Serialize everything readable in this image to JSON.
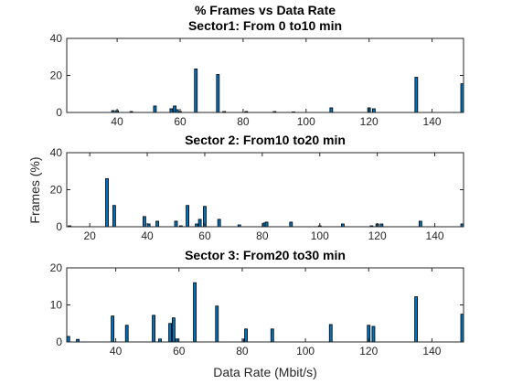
{
  "figure": {
    "title": "% Frames vs Data Rate",
    "xlabel": "Data Rate (Mbit/s)",
    "ylabel": "Frames (%)"
  },
  "colors": {
    "bar_fill": "#0072BD",
    "bar_edge": "#000000",
    "axis": "#262626"
  },
  "chart_data": [
    {
      "type": "bar",
      "title": "Sector1: From 0 to10 min",
      "xlabel": "",
      "ylabel": "",
      "xlim": [
        24,
        150
      ],
      "ylim": [
        0,
        40
      ],
      "xticks": [
        40,
        60,
        80,
        100,
        120,
        140
      ],
      "yticks": [
        0,
        20,
        40
      ],
      "x": [
        38.7,
        40,
        44.5,
        52,
        57.2,
        58.3,
        59,
        60,
        65,
        72,
        74,
        81,
        90,
        96,
        108,
        120,
        121.5,
        135,
        150
      ],
      "values": [
        1.0,
        1.0,
        0.5,
        3.5,
        2.0,
        3.5,
        1.5,
        0.5,
        23.5,
        20.5,
        0.5,
        0.5,
        0.5,
        0.3,
        2.5,
        2.5,
        2.0,
        19.0,
        15.5
      ]
    },
    {
      "type": "bar",
      "title": "Sector 2: From10 to20 min",
      "xlabel": "",
      "ylabel": "Frames (%)",
      "xlim": [
        12,
        150
      ],
      "ylim": [
        0,
        40
      ],
      "xticks": [
        20,
        40,
        60,
        80,
        100,
        120,
        140
      ],
      "yticks": [
        0,
        20,
        40
      ],
      "x": [
        13,
        26,
        28.5,
        39,
        40.5,
        43.5,
        50,
        51.7,
        54,
        57.2,
        58.3,
        60,
        65,
        72,
        80.8,
        81.5,
        90,
        100,
        108,
        118,
        120,
        121.5,
        135,
        150
      ],
      "values": [
        0.5,
        26.0,
        11.5,
        5.5,
        1.5,
        3.0,
        3.0,
        0.5,
        11.5,
        1.5,
        4.0,
        11.0,
        4.0,
        1.0,
        2.0,
        2.5,
        2.5,
        0.5,
        1.5,
        0.5,
        1.5,
        1.5,
        3.0,
        1.5
      ]
    },
    {
      "type": "bar",
      "title": "Sector 3: From20 to30 min",
      "xlabel": "Data Rate (Mbit/s)",
      "ylabel": "",
      "xlim": [
        24.5,
        150
      ],
      "ylim": [
        0,
        20
      ],
      "xticks": [
        40,
        60,
        80,
        100,
        120,
        140
      ],
      "yticks": [
        0,
        10,
        20
      ],
      "x": [
        25,
        28,
        39,
        43.5,
        52,
        54,
        57.2,
        58.3,
        59.3,
        65,
        72,
        80.8,
        81.2,
        89.5,
        108,
        120,
        121.5,
        135,
        150
      ],
      "values": [
        1.5,
        0.7,
        7.0,
        4.5,
        7.2,
        0.8,
        5.0,
        6.5,
        0.8,
        16.0,
        9.7,
        0.8,
        3.5,
        3.5,
        4.7,
        4.5,
        4.2,
        12.2,
        7.5
      ]
    }
  ]
}
